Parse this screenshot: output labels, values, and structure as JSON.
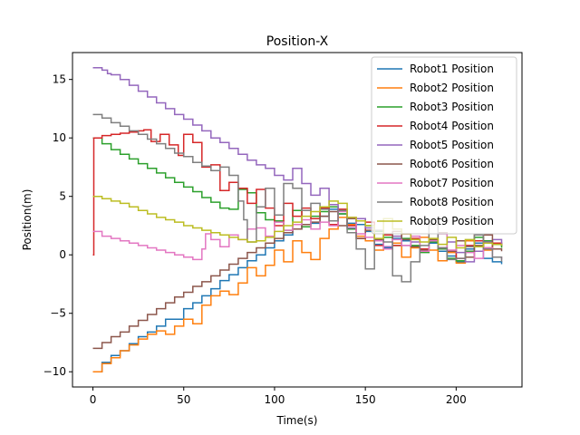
{
  "chart_data": {
    "type": "line",
    "title": "Position-X",
    "xlabel": "Time(s)",
    "ylabel": "Position(m)",
    "xlim": [
      -11.25,
      236.25
    ],
    "ylim": [
      -11.3,
      17.3
    ],
    "xticks": [
      0,
      50,
      100,
      150,
      200
    ],
    "yticks": [
      -10,
      -5,
      0,
      5,
      10,
      15
    ],
    "legend_position": "top-right",
    "grid": false,
    "series": [
      {
        "name": "Robot1 Position",
        "color": "#1f77b4",
        "x": [
          0,
          5,
          10,
          15,
          20,
          25,
          30,
          35,
          40,
          50,
          55,
          60,
          65,
          70,
          75,
          80,
          85,
          90,
          95,
          100,
          105,
          110,
          115,
          120,
          125,
          130,
          135,
          140,
          145,
          150,
          155,
          160,
          165,
          170,
          175,
          180,
          185,
          190,
          195,
          200,
          205,
          210,
          215,
          220,
          225
        ],
        "y": [
          -10,
          -9.2,
          -8.6,
          -8.2,
          -7.6,
          -7,
          -6.6,
          -6.1,
          -5.5,
          -4.6,
          -4.1,
          -3.5,
          -2.9,
          -2.2,
          -1.7,
          -1.1,
          -0.5,
          0,
          0.6,
          1.2,
          1.7,
          2.2,
          2.6,
          2.7,
          3.3,
          3.9,
          3.5,
          2.7,
          2.6,
          2,
          0.9,
          0.6,
          1.4,
          1.2,
          0.7,
          0.4,
          1,
          0.3,
          -0.1,
          -0.6,
          0.5,
          1,
          -0.3,
          -0.6,
          -0.8
        ]
      },
      {
        "name": "Robot2 Position",
        "color": "#ff7f0e",
        "x": [
          0,
          5,
          10,
          15,
          20,
          25,
          30,
          35,
          40,
          45,
          50,
          55,
          60,
          65,
          70,
          75,
          80,
          85,
          90,
          95,
          100,
          105,
          110,
          115,
          120,
          125,
          130,
          135,
          140,
          145,
          150,
          155,
          160,
          165,
          170,
          175,
          180,
          185,
          190,
          195,
          200,
          205,
          210,
          215,
          220,
          225
        ],
        "y": [
          -10,
          -9.3,
          -8.8,
          -8.2,
          -7.7,
          -7.2,
          -6.8,
          -6.5,
          -6.8,
          -6.1,
          -5.5,
          -5.9,
          -4.3,
          -3.5,
          -3.1,
          -3.4,
          -2.4,
          -1.1,
          -1.8,
          -0.9,
          0.4,
          -0.6,
          1.2,
          0.2,
          -0.4,
          1.4,
          2.2,
          3.2,
          2.6,
          1.6,
          1.2,
          0.4,
          1.8,
          1,
          -0.2,
          0.6,
          1.5,
          0.4,
          -0.5,
          0.2,
          -0.7,
          1.2,
          1.7,
          0.4,
          1,
          0.7
        ]
      },
      {
        "name": "Robot3 Position",
        "color": "#2ca02c",
        "x": [
          0,
          5,
          10,
          15,
          20,
          25,
          30,
          35,
          40,
          45,
          50,
          55,
          60,
          65,
          70,
          75,
          80,
          85,
          90,
          95,
          100,
          105,
          110,
          115,
          120,
          125,
          130,
          135,
          140,
          145,
          150,
          155,
          160,
          165,
          170,
          175,
          180,
          185,
          190,
          195,
          200,
          205,
          210,
          215,
          220,
          225
        ],
        "y": [
          10,
          9.5,
          9,
          8.6,
          8.2,
          7.8,
          7.4,
          7,
          6.6,
          6.2,
          5.8,
          5.4,
          4.9,
          4.5,
          4,
          3.9,
          5.6,
          5.3,
          3.6,
          3,
          2.9,
          2.1,
          3.8,
          2.4,
          3.3,
          3.7,
          4.1,
          3.5,
          2.2,
          3.1,
          2.5,
          2,
          1.5,
          0.8,
          1.4,
          0.8,
          0.2,
          1.1,
          0.5,
          -0.3,
          -0.5,
          0.3,
          1.5,
          1.2,
          0.9,
          0.6
        ]
      },
      {
        "name": "Robot4 Position",
        "color": "#d62728",
        "x": [
          0,
          0.5,
          5,
          10,
          15,
          20,
          25,
          28,
          32,
          37,
          42,
          47,
          50,
          55,
          60,
          65,
          70,
          75,
          80,
          85,
          90,
          95,
          100,
          105,
          110,
          115,
          120,
          125,
          130,
          135,
          140,
          145,
          150,
          155,
          160,
          165,
          170,
          175,
          180,
          185,
          190,
          195,
          200,
          205,
          210,
          215,
          220,
          225
        ],
        "y": [
          0,
          10,
          10.2,
          10.3,
          10.4,
          10.5,
          10.6,
          10.7,
          9.7,
          10.3,
          9.4,
          8.5,
          10.3,
          9.6,
          7.5,
          7.7,
          5.5,
          6.2,
          5.7,
          4.4,
          5.6,
          4,
          2.5,
          4.4,
          3.3,
          4,
          3.1,
          4,
          2.6,
          3.9,
          2.5,
          1.4,
          2.8,
          0.8,
          1.7,
          0.8,
          1.8,
          1.4,
          0.5,
          1.2,
          0.6,
          0.3,
          -0.3,
          0.8,
          1.2,
          0.6,
          1,
          0.8
        ]
      },
      {
        "name": "Robot5 Position",
        "color": "#9467bd",
        "x": [
          0,
          3,
          5,
          8,
          10,
          15,
          20,
          25,
          30,
          35,
          40,
          45,
          50,
          55,
          60,
          65,
          70,
          75,
          80,
          85,
          90,
          95,
          100,
          105,
          110,
          115,
          120,
          125,
          130,
          135,
          140,
          145,
          150,
          155,
          160,
          165,
          170,
          175,
          180,
          185,
          190,
          195,
          200,
          205,
          210,
          215,
          220,
          225
        ],
        "y": [
          16,
          16,
          15.8,
          15.5,
          15.4,
          15,
          14.5,
          14,
          13.5,
          13,
          12.5,
          12,
          11.6,
          11.1,
          10.6,
          10,
          9.6,
          9.1,
          8.6,
          8.1,
          7.7,
          7.4,
          6.8,
          6.4,
          7.4,
          6.1,
          5.1,
          5.7,
          4.3,
          3.8,
          2.3,
          3.1,
          2.3,
          1.3,
          0.7,
          1.6,
          0.8,
          1.1,
          0.3,
          1.3,
          0.6,
          1.1,
          0.2,
          -0.6,
          0.3,
          1.1,
          1.3,
          0.8
        ]
      },
      {
        "name": "Robot6 Position",
        "color": "#8c564b",
        "x": [
          0,
          5,
          10,
          15,
          20,
          25,
          30,
          35,
          40,
          45,
          50,
          55,
          60,
          65,
          70,
          75,
          80,
          85,
          90,
          95,
          100,
          105,
          110,
          115,
          120,
          125,
          130,
          135,
          140,
          145,
          150,
          155,
          160,
          165,
          170,
          175,
          180,
          185,
          190,
          195,
          200,
          205,
          210,
          215,
          220,
          225
        ],
        "y": [
          -8,
          -7.5,
          -7,
          -6.6,
          -6.1,
          -5.6,
          -5.1,
          -4.6,
          -4.1,
          -3.6,
          -3.2,
          -2.7,
          -2.3,
          -1.8,
          -1.3,
          -0.8,
          -0.3,
          0.2,
          0.6,
          1,
          1.4,
          1.9,
          2.2,
          2.6,
          2.8,
          3.3,
          3.7,
          2.5,
          3.1,
          1.4,
          2.1,
          1.3,
          0.5,
          2,
          1.3,
          0.7,
          0.4,
          1.3,
          1.9,
          0.3,
          1.2,
          -0.2,
          0.8,
          1.7,
          0.5,
          0.3
        ]
      },
      {
        "name": "Robot7 Position",
        "color": "#e377c2",
        "x": [
          0,
          5,
          10,
          15,
          20,
          25,
          30,
          35,
          40,
          45,
          50,
          55,
          58,
          60,
          62,
          65,
          70,
          75,
          80,
          85,
          90,
          95,
          100,
          105,
          110,
          115,
          120,
          125,
          130,
          135,
          140,
          145,
          150,
          155,
          160,
          165,
          170,
          175,
          180,
          185,
          190,
          195,
          200,
          205,
          210,
          215,
          220,
          225
        ],
        "y": [
          2,
          1.6,
          1.4,
          1.2,
          1,
          0.8,
          0.6,
          0.4,
          0.2,
          0,
          -0.2,
          -0.4,
          -0.4,
          0.5,
          1.8,
          1.3,
          0.7,
          1.7,
          1.3,
          2.2,
          2.3,
          1.6,
          2.8,
          2.1,
          2.6,
          3,
          2.2,
          2.8,
          2.5,
          3.7,
          3.2,
          1.8,
          1.5,
          1.2,
          0.5,
          1.3,
          0.8,
          1.6,
          0.3,
          1.2,
          1.8,
          0.4,
          0.8,
          0.2,
          -0.3,
          0.6,
          -0.2,
          -0.4
        ]
      },
      {
        "name": "Robot8 Position",
        "color": "#7f7f7f",
        "x": [
          0,
          3,
          5,
          10,
          15,
          20,
          25,
          30,
          35,
          40,
          45,
          50,
          55,
          60,
          65,
          70,
          75,
          80,
          83,
          85,
          90,
          95,
          100,
          105,
          110,
          115,
          120,
          125,
          130,
          135,
          140,
          145,
          150,
          155,
          160,
          165,
          170,
          175,
          180,
          185,
          190,
          195,
          200,
          205,
          210,
          215,
          220,
          225
        ],
        "y": [
          12,
          12,
          11.7,
          11.3,
          11,
          10.6,
          10.3,
          9.9,
          9.5,
          9.1,
          8.7,
          8.4,
          7.9,
          7.6,
          7.2,
          7.5,
          6.8,
          4.6,
          3,
          1.1,
          4.1,
          5.7,
          3.4,
          6.1,
          5.7,
          3.8,
          4.4,
          3.9,
          2.9,
          3.8,
          1.9,
          0.5,
          -1.2,
          2.1,
          1.1,
          -1.8,
          -2.3,
          -0.6,
          0.8,
          2.6,
          0.6,
          -0.4,
          -0.3,
          0.7,
          1.7,
          0.5,
          -0.2,
          -0.6
        ]
      },
      {
        "name": "Robot9 Position",
        "color": "#bcbd22",
        "x": [
          0,
          5,
          10,
          15,
          20,
          25,
          30,
          35,
          40,
          45,
          50,
          55,
          60,
          65,
          70,
          75,
          80,
          85,
          90,
          95,
          100,
          105,
          110,
          115,
          120,
          125,
          130,
          135,
          140,
          145,
          150,
          155,
          160,
          165,
          170,
          175,
          180,
          185,
          190,
          195,
          200,
          205,
          210,
          215,
          220,
          225
        ],
        "y": [
          5,
          4.8,
          4.6,
          4.4,
          4.1,
          3.8,
          3.5,
          3.2,
          3,
          2.8,
          2.5,
          2.3,
          2.1,
          1.9,
          1.7,
          1.5,
          1.3,
          1.1,
          1.2,
          1.5,
          2,
          2.5,
          2.8,
          3.3,
          3.7,
          4.1,
          4.6,
          4.4,
          3.2,
          2.9,
          2.5,
          1.4,
          3.1,
          2.2,
          1.8,
          1.3,
          1.1,
          1.4,
          0.9,
          1.5,
          0.6,
          1.3,
          0.7,
          1,
          0.9,
          0.8
        ]
      }
    ]
  }
}
